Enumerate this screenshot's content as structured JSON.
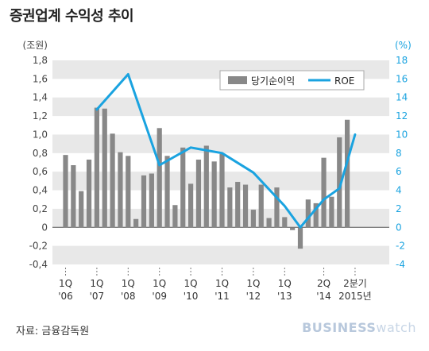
{
  "title": "증권업계 수익성 추이",
  "source": "자료: 금융감독원",
  "brand": {
    "part1": "BUSINESS",
    "part2": "watch"
  },
  "colors": {
    "bar": "#888888",
    "line": "#1aa3e0",
    "band": "#e8e8e8"
  },
  "chart_data": {
    "type": "bar+line",
    "left_axis": {
      "unit": "(조원)",
      "ylim": [
        -0.4,
        1.8
      ],
      "ticks": [
        "1,8",
        "1,6",
        "1,4",
        "1,2",
        "1,0",
        "0,8",
        "0,6",
        "0,4",
        "0,2",
        "0",
        "-0,2",
        "-0,4"
      ],
      "tick_values": [
        1.8,
        1.6,
        1.4,
        1.2,
        1.0,
        0.8,
        0.6,
        0.4,
        0.2,
        0,
        -0.2,
        -0.4
      ]
    },
    "right_axis": {
      "unit": "(%)",
      "ylim": [
        -4,
        18
      ],
      "ticks": [
        "18",
        "16",
        "14",
        "12",
        "10",
        "8",
        "6",
        "4",
        "2",
        "0",
        "-2",
        "-4"
      ],
      "tick_values": [
        18,
        16,
        14,
        12,
        10,
        8,
        6,
        4,
        2,
        0,
        -2,
        -4
      ]
    },
    "legend": {
      "position": "top-right",
      "bar_label": "당기순이익",
      "line_label": "ROE"
    },
    "x_labels": [
      {
        "q": "1Q",
        "y": "'06",
        "index": 0
      },
      {
        "q": "1Q",
        "y": "'07",
        "index": 4
      },
      {
        "q": "1Q",
        "y": "'08",
        "index": 8
      },
      {
        "q": "1Q",
        "y": "'09",
        "index": 12
      },
      {
        "q": "1Q",
        "y": "'10",
        "index": 16
      },
      {
        "q": "1Q",
        "y": "'11",
        "index": 20
      },
      {
        "q": "1Q",
        "y": "'12",
        "index": 24
      },
      {
        "q": "1Q",
        "y": "'13",
        "index": 28
      },
      {
        "q": "2Q",
        "y": "'14",
        "index": 33
      },
      {
        "q": "2분기",
        "y": "2015년",
        "index": 37
      }
    ],
    "series": [
      {
        "name": "당기순이익",
        "type": "bar",
        "axis": "left",
        "values": [
          0.78,
          0.67,
          0.39,
          0.73,
          1.29,
          1.28,
          1.01,
          0.81,
          0.77,
          0.09,
          0.56,
          0.58,
          1.07,
          0.77,
          0.24,
          0.86,
          0.47,
          0.73,
          0.88,
          0.71,
          0.79,
          0.43,
          0.49,
          0.46,
          0.19,
          0.46,
          0.1,
          0.43,
          0.11,
          -0.03,
          -0.23,
          0.3,
          0.26,
          0.75,
          0.33,
          0.97,
          1.16
        ]
      },
      {
        "name": "ROE",
        "type": "line",
        "axis": "right",
        "points": [
          [
            4,
            12.7
          ],
          [
            8,
            16.5
          ],
          [
            12,
            6.7
          ],
          [
            16,
            8.6
          ],
          [
            20,
            8.0
          ],
          [
            24,
            5.9
          ],
          [
            28,
            2.3
          ],
          [
            30,
            0
          ],
          [
            33,
            3.0
          ],
          [
            35,
            4.2
          ],
          [
            37,
            10.0
          ]
        ]
      }
    ]
  }
}
